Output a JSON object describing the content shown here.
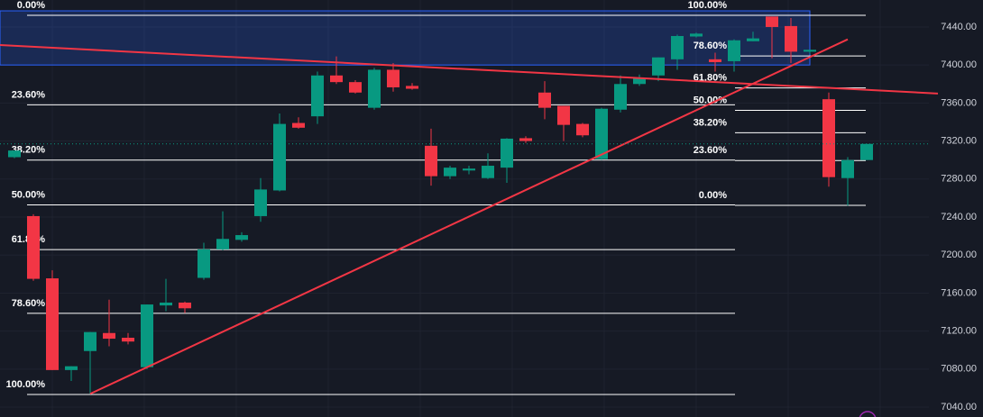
{
  "chart_data": {
    "type": "candlestick",
    "up_color": "#089981",
    "down_color": "#f23645",
    "open": [
      7303,
      7241,
      7175.5,
      7079,
      7099,
      7118,
      7113,
      7082,
      7147,
      7150,
      7176,
      7206,
      7216,
      7241,
      7268,
      7339,
      7346,
      7389,
      7382,
      7355,
      7395,
      7378,
      7315,
      7283,
      7289,
      7281,
      7292,
      7323,
      7371,
      7357,
      7338,
      7301,
      7353,
      7380,
      7389,
      7406,
      7430,
      7406,
      7404,
      7425,
      7451,
      7441,
      7414,
      7364,
      7281,
      7300
    ],
    "high": [
      7310,
      7243,
      7184,
      7083,
      7119,
      7153,
      7118,
      7148,
      7175,
      7151,
      7213,
      7246,
      7224,
      7281,
      7349,
      7345,
      7393,
      7409,
      7384,
      7397,
      7402,
      7381,
      7333,
      7294,
      7294,
      7307,
      7323,
      7325,
      7383,
      7357,
      7339,
      7355,
      7389,
      7390,
      7408,
      7432,
      7434,
      7413,
      7427,
      7435,
      7451,
      7449.5,
      7416,
      7371,
      7303,
      7317
    ],
    "low": [
      7302,
      7173,
      7079,
      7067.5,
      7054,
      7104,
      7106,
      7080,
      7141,
      7139,
      7174,
      7205,
      7214,
      7235,
      7267,
      7333,
      7338,
      7380,
      7370,
      7353,
      7372,
      7374,
      7273,
      7280,
      7285,
      7280,
      7276,
      7318,
      7343,
      7320,
      7324,
      7300,
      7350,
      7378,
      7383,
      7395,
      7429,
      7393,
      7393,
      7425,
      7407,
      7402,
      7412,
      7272,
      7252,
      7300
    ],
    "close": [
      7310,
      7175,
      7079,
      7083,
      7119,
      7112,
      7109,
      7148,
      7150,
      7144,
      7206,
      7217,
      7221,
      7269,
      7338,
      7334,
      7389,
      7382,
      7371,
      7395,
      7376.5,
      7375,
      7283,
      7292,
      7291,
      7294,
      7322.5,
      7320,
      7355,
      7337,
      7326,
      7354,
      7380,
      7386,
      7408,
      7430.5,
      7433,
      7403,
      7426,
      7428,
      7440,
      7414,
      7416,
      7282,
      7300,
      7317
    ],
    "ylim": [
      7029.6,
      7468.4
    ],
    "yticks": [
      {
        "value": 7040,
        "label": "7040.00"
      },
      {
        "value": 7080,
        "label": "7080.00"
      },
      {
        "value": 7120,
        "label": "7120.00"
      },
      {
        "value": 7160,
        "label": "7160.00"
      },
      {
        "value": 7200,
        "label": "7200.00"
      },
      {
        "value": 7240,
        "label": "7240.00"
      },
      {
        "value": 7280,
        "label": "7280.00"
      },
      {
        "value": 7320,
        "label": "7320.00"
      },
      {
        "value": 7360,
        "label": "7360.00"
      },
      {
        "value": 7400,
        "label": "7400.00"
      },
      {
        "value": 7440,
        "label": "7440.00"
      }
    ],
    "zone": {
      "top": 7457,
      "bottom": 7400,
      "color": "#2962ff"
    },
    "trendlines": [
      {
        "color": "#f23645",
        "start": 7421,
        "end": 7370
      },
      {
        "color": "#f23645",
        "start": 7054,
        "end": 7427
      }
    ],
    "fibs": [
      {
        "from": 7053.3,
        "to": 7452.3,
        "levels": [
          {
            "value": 0,
            "label": "0.00%"
          },
          {
            "value": 23.6,
            "label": "23.60%"
          },
          {
            "value": 38.2,
            "label": "38.20%"
          },
          {
            "value": 50,
            "label": "50.00%"
          },
          {
            "value": 61.8,
            "label": "61.80%"
          },
          {
            "value": 78.6,
            "label": "78.60%"
          },
          {
            "value": 100,
            "label": "100.00%"
          }
        ]
      },
      {
        "from": 7452.3,
        "to": 7252.3,
        "levels": [
          {
            "value": 0,
            "label": "0.00%"
          },
          {
            "value": 23.6,
            "label": "23.60%"
          },
          {
            "value": 38.2,
            "label": "38.20%"
          },
          {
            "value": 50,
            "label": "50.00%"
          },
          {
            "value": 61.8,
            "label": "61.80%"
          },
          {
            "value": 78.6,
            "label": "78.60%"
          },
          {
            "value": 100,
            "label": "100.00%"
          }
        ]
      }
    ]
  }
}
